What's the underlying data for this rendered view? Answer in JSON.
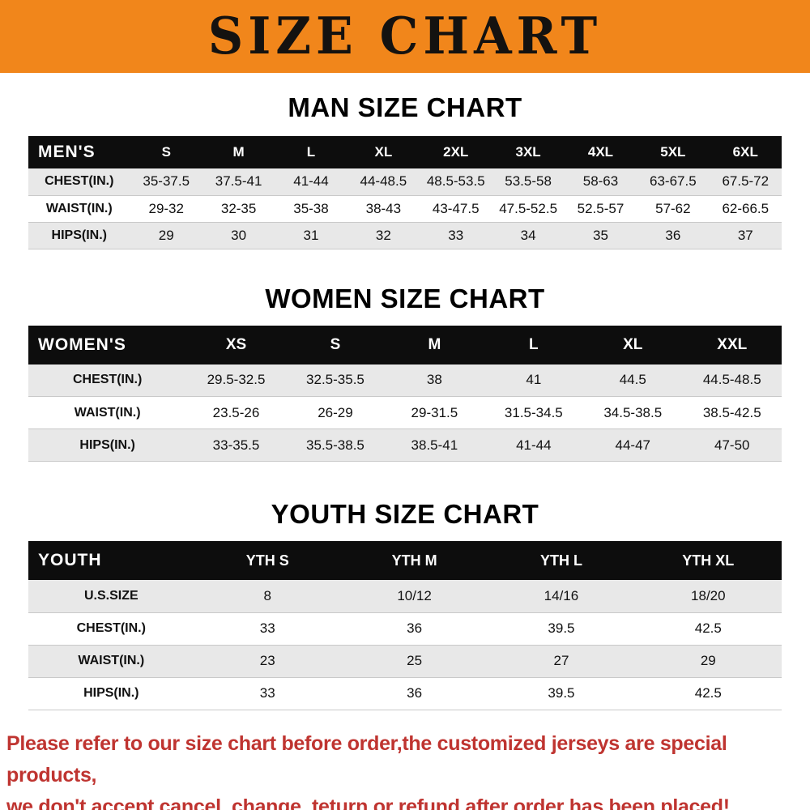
{
  "banner": {
    "title": "SIZE CHART",
    "bg_color": "#f1861b",
    "text_color": "#141210"
  },
  "colors": {
    "table_header_bg": "#0d0d0d",
    "row_shade": "#e8e8e8",
    "footer_text": "#bf3430"
  },
  "sections": [
    {
      "heading": "MAN SIZE CHART",
      "table": {
        "header": [
          "MEN'S",
          "S",
          "M",
          "L",
          "XL",
          "2XL",
          "3XL",
          "4XL",
          "5XL",
          "6XL"
        ],
        "rows": [
          [
            "CHEST(IN.)",
            "35-37.5",
            "37.5-41",
            "41-44",
            "44-48.5",
            "48.5-53.5",
            "53.5-58",
            "58-63",
            "63-67.5",
            "67.5-72"
          ],
          [
            "WAIST(IN.)",
            "29-32",
            "32-35",
            "35-38",
            "38-43",
            "43-47.5",
            "47.5-52.5",
            "52.5-57",
            "57-62",
            "62-66.5"
          ],
          [
            "HIPS(IN.)",
            "29",
            "30",
            "31",
            "32",
            "33",
            "34",
            "35",
            "36",
            "37"
          ]
        ]
      }
    },
    {
      "heading": "WOMEN SIZE CHART",
      "table": {
        "header": [
          "WOMEN'S",
          "XS",
          "S",
          "M",
          "L",
          "XL",
          "XXL"
        ],
        "rows": [
          [
            "CHEST(IN.)",
            "29.5-32.5",
            "32.5-35.5",
            "38",
            "41",
            "44.5",
            "44.5-48.5"
          ],
          [
            "WAIST(IN.)",
            "23.5-26",
            "26-29",
            "29-31.5",
            "31.5-34.5",
            "34.5-38.5",
            "38.5-42.5"
          ],
          [
            "HIPS(IN.)",
            "33-35.5",
            "35.5-38.5",
            "38.5-41",
            "41-44",
            "44-47",
            "47-50"
          ]
        ]
      }
    },
    {
      "heading": "YOUTH SIZE CHART",
      "table": {
        "header": [
          "YOUTH",
          "YTH S",
          "YTH M",
          "YTH L",
          "YTH XL"
        ],
        "rows": [
          [
            "U.S.SIZE",
            "8",
            "10/12",
            "14/16",
            "18/20"
          ],
          [
            "CHEST(IN.)",
            "33",
            "36",
            "39.5",
            "42.5"
          ],
          [
            "WAIST(IN.)",
            "23",
            "25",
            "27",
            "29"
          ],
          [
            "HIPS(IN.)",
            "33",
            "36",
            "39.5",
            "42.5"
          ]
        ]
      }
    }
  ],
  "footer": {
    "line1": "Please refer to our size chart before order,the customized jerseys are special products,",
    "line2": "we don't accept cancel, change, teturn or refund after order has been placed!"
  }
}
